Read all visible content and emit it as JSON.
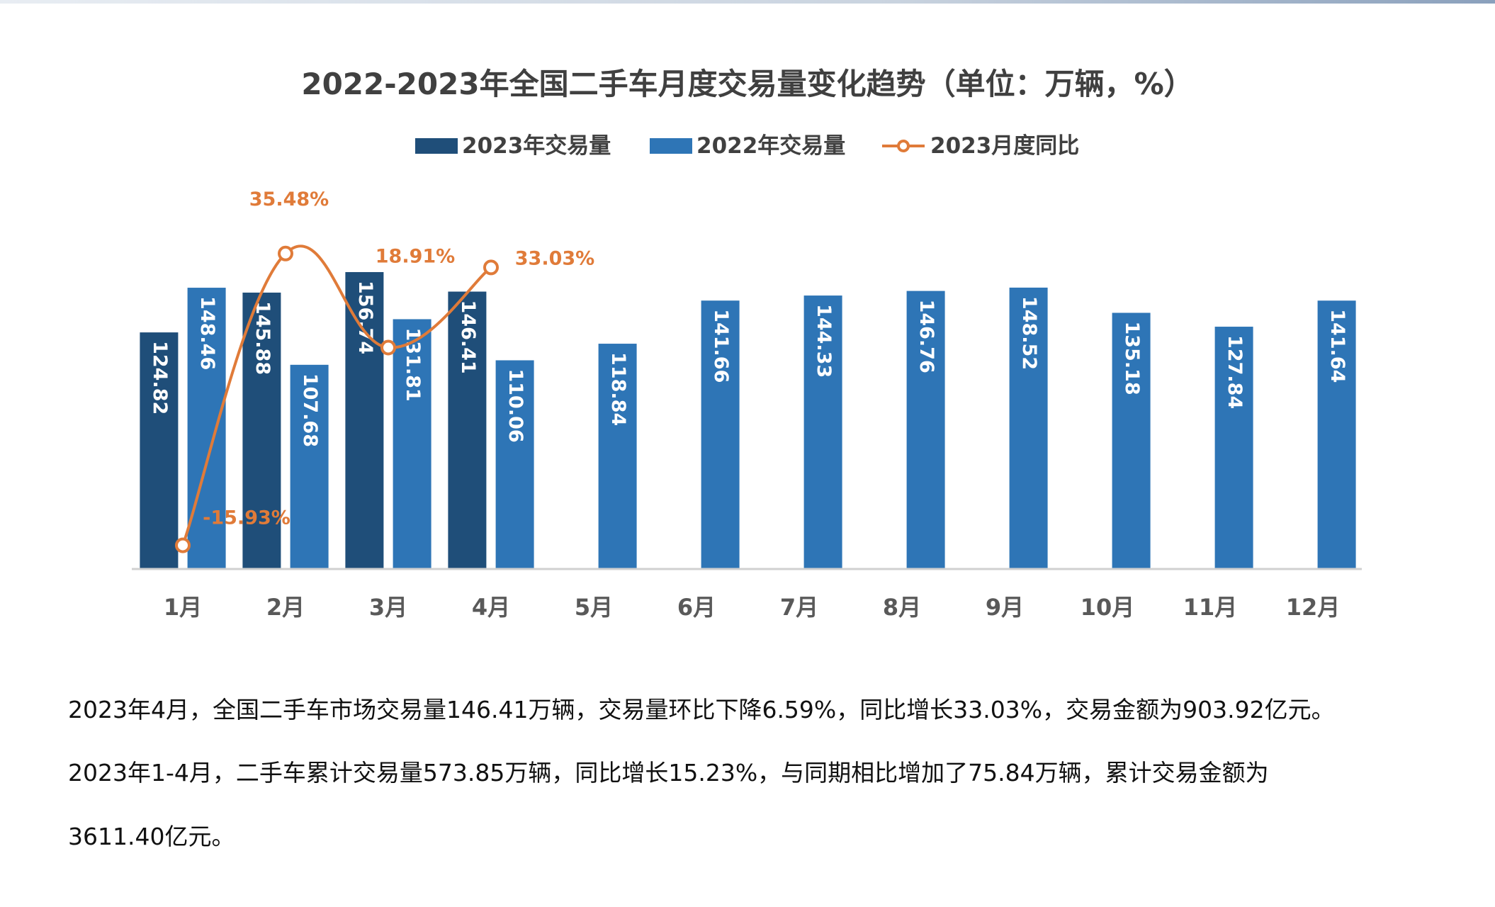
{
  "chart_data": {
    "type": "bar+line",
    "title": "2022-2023年全国二手车月度交易量变化趋势（单位：万辆，%）",
    "categories": [
      "1月",
      "2月",
      "3月",
      "4月",
      "5月",
      "6月",
      "7月",
      "8月",
      "9月",
      "10月",
      "11月",
      "12月"
    ],
    "series": [
      {
        "name": "2023年交易量",
        "type": "bar",
        "color": "#1f4e79",
        "values": [
          124.82,
          145.88,
          156.74,
          146.41,
          null,
          null,
          null,
          null,
          null,
          null,
          null,
          null
        ]
      },
      {
        "name": "2022年交易量",
        "type": "bar",
        "color": "#2e75b6",
        "values": [
          148.46,
          107.68,
          131.81,
          110.06,
          118.84,
          141.66,
          144.33,
          146.76,
          148.52,
          135.18,
          127.84,
          141.64
        ]
      },
      {
        "name": "2023月度同比",
        "type": "line",
        "color": "#e07b39",
        "values": [
          -15.93,
          35.48,
          18.91,
          33.03,
          null,
          null,
          null,
          null,
          null,
          null,
          null,
          null
        ],
        "labels": [
          "-15.93%",
          "35.48%",
          "18.91%",
          "33.03%"
        ]
      }
    ],
    "legend": "top",
    "grid": false
  },
  "text": {
    "p1": "2023年4月，全国二手车市场交易量146.41万辆，交易量环比下降6.59%，同比增长33.03%，交易金额为903.92亿元。",
    "p2": "2023年1-4月，二手车累计交易量573.85万辆，同比增长15.23%，与同期相比增加了75.84万辆，累计交易金额为",
    "p3": "3611.40亿元。"
  }
}
